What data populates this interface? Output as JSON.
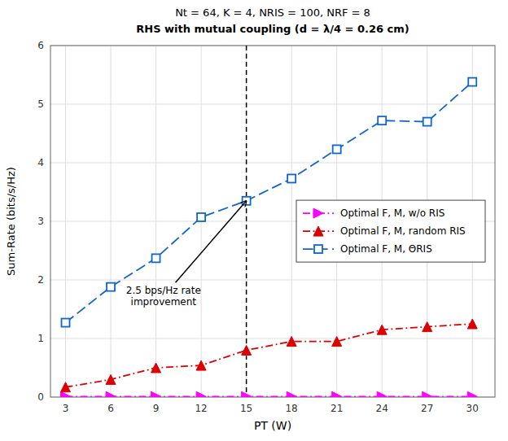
{
  "chart_data": {
    "type": "line",
    "title": "Nt = 64, K = 4, NRIS = 100, NRF = 8",
    "subtitle": "RHS with mutual coupling (d = λ/4 = 0.26 cm)",
    "x_label": "PT (W)",
    "y_label": "Sum-Rate (bits/s/Hz)",
    "x": [
      3,
      6,
      9,
      12,
      15,
      18,
      21,
      24,
      27,
      30
    ],
    "series": [
      {
        "name": "Optimal F, M, w/o RIS",
        "color": "#FF00FF",
        "marker": "triangle-right",
        "line_style": "dashdot",
        "values": [
          0.01,
          0.01,
          0.01,
          0.01,
          0.01,
          0.01,
          0.01,
          0.01,
          0.01,
          0.01
        ]
      },
      {
        "name": "Optimal F, M, random RIS",
        "color": "#DD0000",
        "marker": "triangle-up",
        "line_style": "dashdot",
        "values": [
          0.17,
          0.3,
          0.5,
          0.54,
          0.8,
          0.95,
          0.95,
          1.15,
          1.2,
          1.25
        ]
      },
      {
        "name": "Optimal F, M, ΘRIS",
        "color": "#1166CC",
        "marker": "square",
        "line_style": "dashed",
        "values": [
          1.27,
          1.88,
          2.37,
          3.07,
          3.35,
          3.73,
          4.23,
          4.72,
          4.7,
          5.38
        ]
      }
    ],
    "xlim": [
      2.0,
      31.5
    ],
    "ylim": [
      0,
      6
    ],
    "xticks": [
      3,
      6,
      9,
      12,
      15,
      18,
      21,
      24,
      27,
      30
    ],
    "yticks": [
      0,
      1,
      2,
      3,
      4,
      5,
      6
    ],
    "vline": 15,
    "annotations": [
      {
        "text": "2.5 bps/Hz rate\nimprovement",
        "x": 15.0,
        "y": 3.35,
        "text_x": 9.5,
        "text_y": 1.72
      }
    ],
    "grid": true,
    "legend": "center right"
  }
}
